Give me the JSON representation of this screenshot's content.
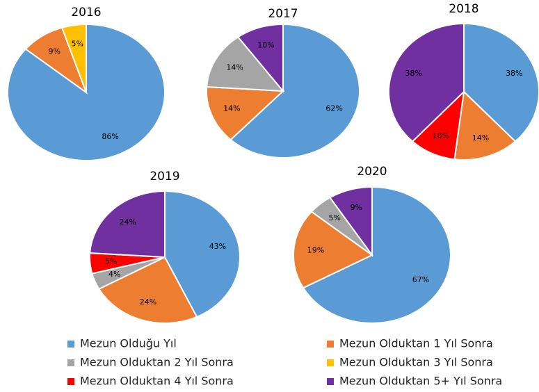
{
  "chart_data": [
    {
      "type": "pie",
      "title": "2016",
      "values": [
        86,
        9,
        null,
        5,
        null,
        null
      ],
      "value_labels": [
        "86%",
        "9%",
        null,
        "5%",
        null,
        null
      ]
    },
    {
      "type": "pie",
      "title": "2017",
      "values": [
        62,
        14,
        14,
        null,
        null,
        10
      ],
      "value_labels": [
        "62%",
        "14%",
        "14%",
        null,
        null,
        "10%"
      ]
    },
    {
      "type": "pie",
      "title": "2018",
      "values": [
        38,
        14,
        null,
        null,
        10,
        38
      ],
      "value_labels": [
        "38%",
        "14%",
        null,
        null,
        "10%",
        "38%"
      ]
    },
    {
      "type": "pie",
      "title": "2019",
      "values": [
        43,
        24,
        4,
        null,
        5,
        24
      ],
      "value_labels": [
        "43%",
        "24%",
        "4%",
        null,
        "5%",
        "24%"
      ]
    },
    {
      "type": "pie",
      "title": "2020",
      "values": [
        67,
        19,
        5,
        null,
        null,
        9
      ],
      "value_labels": [
        "67%",
        "19%",
        "5%",
        null,
        null,
        "9%"
      ]
    }
  ],
  "legend": {
    "categories": [
      "Mezun Olduğu Yıl",
      "Mezun Olduktan 1 Yıl Sonra",
      "Mezun Olduktan 2 Yıl Sonra",
      "Mezun Olduktan 3 Yıl Sonra",
      "Mezun Olduktan 4 Yıl Sonra",
      "Mezun Olduktan 5+ Yıl Sonra"
    ],
    "colors": [
      "#5b9bd5",
      "#ed7d31",
      "#a5a5a5",
      "#ffc000",
      "#ff0000",
      "#7030a0"
    ]
  }
}
